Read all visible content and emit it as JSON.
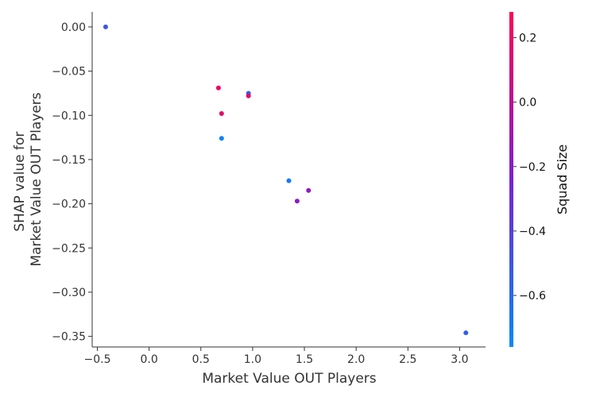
{
  "chart_data": {
    "type": "scatter",
    "title": "",
    "xlabel": "Market Value OUT Players",
    "ylabel_lines": [
      "SHAP value for",
      "Market Value OUT Players"
    ],
    "xlim": [
      -0.55,
      3.25
    ],
    "ylim": [
      -0.362,
      0.017
    ],
    "x_ticks": [
      -0.5,
      0.0,
      0.5,
      1.0,
      1.5,
      2.0,
      2.5,
      3.0
    ],
    "x_tick_labels": [
      "−0.5",
      "0.0",
      "0.5",
      "1.0",
      "1.5",
      "2.0",
      "2.5",
      "3.0"
    ],
    "y_ticks": [
      0.0,
      -0.05,
      -0.1,
      -0.15,
      -0.2,
      -0.25,
      -0.3,
      -0.35
    ],
    "y_tick_labels": [
      "0.00",
      "−0.05",
      "−0.10",
      "−0.15",
      "−0.20",
      "−0.25",
      "−0.30",
      "−0.35"
    ],
    "grid": false,
    "colorbar": {
      "label": "Squad Size",
      "range": [
        -0.76,
        0.28
      ],
      "ticks": [
        0.2,
        0.0,
        -0.2,
        -0.4,
        -0.6
      ],
      "tick_labels": [
        "0.2",
        "0.0",
        "−0.2",
        "−0.4",
        "−0.6"
      ],
      "colormap": [
        "#008afb",
        "#7c20d0",
        "#ff0051"
      ]
    },
    "points": [
      {
        "x": -0.42,
        "y": 0.0,
        "c": -0.5
      },
      {
        "x": 0.67,
        "y": -0.069,
        "c": 0.22
      },
      {
        "x": 0.96,
        "y": -0.075,
        "c": -0.55
      },
      {
        "x": 0.96,
        "y": -0.078,
        "c": 0.15
      },
      {
        "x": 0.7,
        "y": -0.098,
        "c": 0.18
      },
      {
        "x": 0.7,
        "y": -0.126,
        "c": -0.72
      },
      {
        "x": 1.35,
        "y": -0.174,
        "c": -0.68
      },
      {
        "x": 1.54,
        "y": -0.185,
        "c": -0.15
      },
      {
        "x": 1.43,
        "y": -0.197,
        "c": -0.18
      },
      {
        "x": 3.06,
        "y": -0.346,
        "c": -0.55
      }
    ]
  }
}
